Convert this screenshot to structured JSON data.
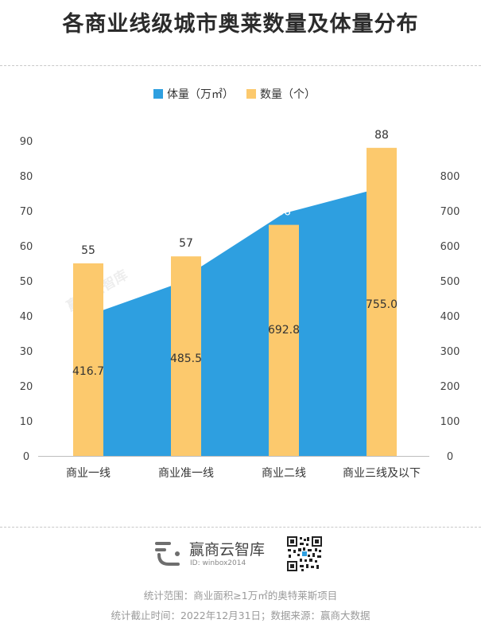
{
  "title": "各商业线级城市奥莱数量及体量分布",
  "chart_data": {
    "type": "bar+area",
    "categories": [
      "商业一线",
      "商业准一线",
      "商业二线",
      "商业三线及以下"
    ],
    "series": [
      {
        "name": "体量（万㎡）",
        "type": "area",
        "axis": "right",
        "color": "#2e9fe0",
        "values": [
          416.7,
          485.5,
          692.8,
          755.0
        ],
        "labels": [
          "416.7",
          "485.5",
          "692.8",
          "755.0"
        ]
      },
      {
        "name": "数量（个）",
        "type": "bar",
        "axis": "left",
        "color": "#fcc96d",
        "values": [
          55,
          57,
          66,
          88
        ],
        "labels": [
          "55",
          "57",
          "66",
          "88"
        ]
      }
    ],
    "left_axis": {
      "min": 0,
      "max": 90,
      "ticks": [
        "0",
        "10",
        "20",
        "30",
        "40",
        "50",
        "60",
        "70",
        "80",
        "90"
      ]
    },
    "right_axis": {
      "min": 0,
      "max": 800,
      "ticks": [
        "0",
        "100",
        "200",
        "300",
        "400",
        "500",
        "600",
        "700",
        "800"
      ]
    },
    "legend_position": "top-center",
    "watermark": "赢商云智库"
  },
  "brand": {
    "name": "赢商云智库",
    "id": "ID: winbox2014"
  },
  "footer": {
    "line1": "统计范围：商业面积≥1万㎡的奥特莱斯项目",
    "line2": "统计截止时间：2022年12月31日；数据来源：赢商大数据"
  }
}
